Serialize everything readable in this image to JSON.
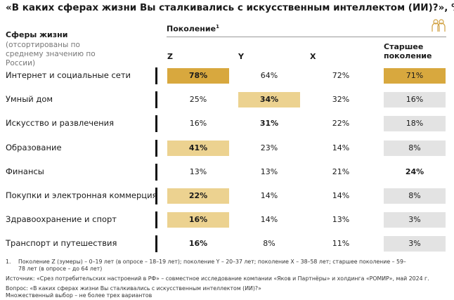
{
  "title": "«В каких сферах жизни Вы сталкивались с искусственным интеллектом (ИИ)?», %",
  "header": {
    "row_label": "Сферы жизни",
    "row_note": "(отсортированы по среднему значению по России)",
    "group": "Поколение",
    "group_mark": "1",
    "columns": [
      "Z",
      "Y",
      "X",
      "Старшее поколение"
    ]
  },
  "rows": [
    {
      "label": "Интернет и социальные сети",
      "values": [
        "78%",
        "64%",
        "72%",
        "71%"
      ]
    },
    {
      "label": "Умный дом",
      "values": [
        "25%",
        "34%",
        "32%",
        "16%"
      ]
    },
    {
      "label": "Искусство и развлечения",
      "values": [
        "16%",
        "31%",
        "22%",
        "18%"
      ]
    },
    {
      "label": "Образование",
      "values": [
        "41%",
        "23%",
        "14%",
        "8%"
      ]
    },
    {
      "label": "Финансы",
      "values": [
        "13%",
        "13%",
        "21%",
        "24%"
      ]
    },
    {
      "label": "Покупки и электронная коммерция",
      "values": [
        "22%",
        "14%",
        "14%",
        "8%"
      ]
    },
    {
      "label": "Здравоохранение и спорт",
      "values": [
        "16%",
        "14%",
        "13%",
        "3%"
      ]
    },
    {
      "label": "Транспорт и путешествия",
      "values": [
        "16%",
        "8%",
        "11%",
        "3%"
      ]
    }
  ],
  "footnotes": {
    "mark": "1.",
    "note": "Поколение Z (зумеры) – 0–19 лет (в опросе – 18–19 лет); поколение Y – 20–37 лет; поколение X – 38–58 лет; старшее поколение – 59–78 лет (в опросе – до 64 лет)",
    "source": "Источник: «Срез потребительских настроений в РФ» – совместное исследование компании «Яков и Партнёры» и холдинга «РОМИР», май 2024 г.",
    "question": "Вопрос: «В каких сферах жизни Вы сталкивались с искусственным интеллектом (ИИ)?»",
    "choice": "Множественный выбор – не более трех вариантов"
  }
}
